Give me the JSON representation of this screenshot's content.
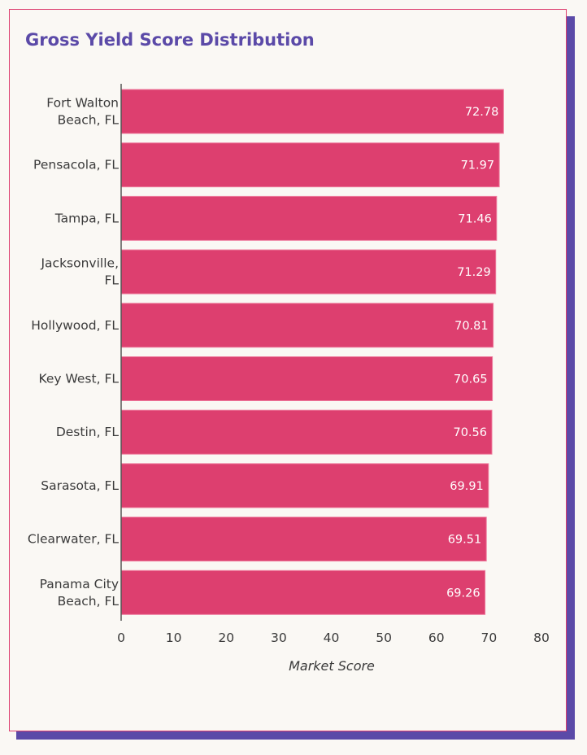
{
  "card": {
    "title": "Gross Yield Score Distribution"
  },
  "colors": {
    "bar": "#dd3f6f",
    "bar_stroke": "#ee7a9c",
    "title": "#5b4aa8",
    "shadow": "#5b4aa8",
    "border": "#dd3f6f",
    "axis": "#555555",
    "background": "#faf8f4"
  },
  "chart_data": {
    "type": "bar",
    "orientation": "horizontal",
    "title": "Gross Yield Score Distribution",
    "xlabel": "Market Score",
    "ylabel": "",
    "xlim": [
      0,
      80
    ],
    "xticks": [
      0,
      10,
      20,
      30,
      40,
      50,
      60,
      70,
      80
    ],
    "grid": false,
    "categories": [
      [
        "Fort Walton",
        "Beach, FL"
      ],
      [
        "Pensacola, FL"
      ],
      [
        "Tampa, FL"
      ],
      [
        "Jacksonville,",
        "FL"
      ],
      [
        "Hollywood, FL"
      ],
      [
        "Key West, FL"
      ],
      [
        "Destin, FL"
      ],
      [
        "Sarasota, FL"
      ],
      [
        "Clearwater, FL"
      ],
      [
        "Panama City",
        "Beach, FL"
      ]
    ],
    "values": [
      72.78,
      71.97,
      71.46,
      71.29,
      70.81,
      70.65,
      70.56,
      69.91,
      69.51,
      69.26
    ],
    "value_labels": [
      "72.78",
      "71.97",
      "71.46",
      "71.29",
      "70.81",
      "70.65",
      "70.56",
      "69.91",
      "69.51",
      "69.26"
    ]
  }
}
